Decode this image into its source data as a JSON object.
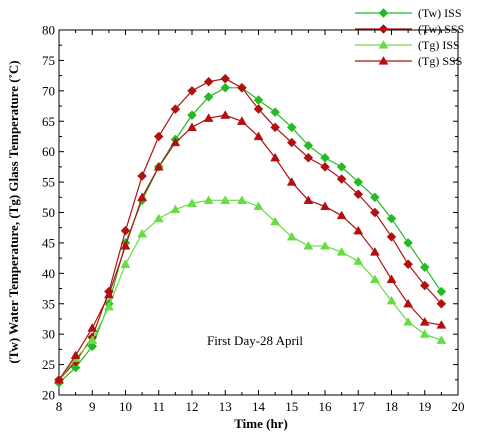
{
  "chart_data": {
    "type": "line",
    "xlabel": "Time (hr)",
    "ylabel": "(Tw) Water Temperature, (Tg) Glass Temperature (˚C)",
    "xlim": [
      8,
      20
    ],
    "ylim": [
      20,
      80
    ],
    "xticks": [
      8,
      9,
      10,
      11,
      12,
      13,
      14,
      15,
      16,
      17,
      18,
      19,
      20
    ],
    "yticks": [
      20,
      25,
      30,
      35,
      40,
      45,
      50,
      55,
      60,
      65,
      70,
      75,
      80
    ],
    "grid": false,
    "legend_position": "top-right",
    "annotation": "First Day-28 April",
    "x": [
      8,
      8.5,
      9,
      9.5,
      10,
      10.5,
      11,
      11.5,
      12,
      12.5,
      13,
      13.5,
      14,
      14.5,
      15,
      15.5,
      16,
      16.5,
      17,
      17.5,
      18,
      18.5,
      19,
      19.5
    ],
    "series": [
      {
        "name": "(Tw) ISS",
        "color": "#22bb22",
        "marker": "diamond",
        "values": [
          22,
          24.5,
          28,
          35,
          45,
          52,
          57.5,
          62,
          66,
          69,
          70.5,
          70.5,
          68.5,
          66.5,
          64,
          61,
          59,
          57.5,
          55,
          52.5,
          49,
          45,
          41,
          37
        ]
      },
      {
        "name": "(Tw) SSS",
        "color": "#b01010",
        "marker": "diamond",
        "values": [
          22.5,
          25.5,
          29.5,
          37,
          47,
          56,
          62.5,
          67,
          70,
          71.5,
          72,
          70.5,
          67,
          64,
          61.5,
          59,
          57.5,
          55.5,
          53,
          50,
          46,
          41.5,
          38,
          35
        ]
      },
      {
        "name": "(Tg) ISS",
        "color": "#66dd44",
        "marker": "triangle",
        "values": [
          22.5,
          26,
          29,
          34.5,
          41.5,
          46.5,
          49,
          50.5,
          51.5,
          52,
          52,
          52,
          51,
          48.5,
          46,
          44.5,
          44.5,
          43.5,
          42,
          39,
          35.5,
          32,
          30,
          29
        ]
      },
      {
        "name": "(Tg) SSS",
        "color": "#b01010",
        "marker": "triangle",
        "values": [
          22.5,
          26.5,
          31,
          36.5,
          44.5,
          52.5,
          57.5,
          61.5,
          64,
          65.5,
          66,
          65,
          62.5,
          59,
          55,
          52,
          51,
          49.5,
          47,
          43.5,
          39,
          35,
          32,
          31.5
        ]
      }
    ]
  }
}
